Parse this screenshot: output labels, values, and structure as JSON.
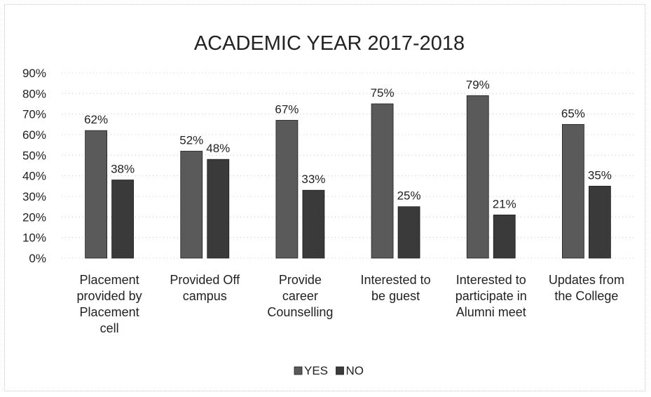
{
  "chart_data": {
    "type": "bar",
    "title": "ACADEMIC YEAR 2017-2018",
    "xlabel": "",
    "ylabel": "",
    "ylim": [
      0,
      90
    ],
    "ytick_values": [
      0,
      10,
      20,
      30,
      40,
      50,
      60,
      70,
      80,
      90
    ],
    "ytick_labels": [
      "0%",
      "10%",
      "20%",
      "30%",
      "40%",
      "50%",
      "60%",
      "70%",
      "80%",
      "90%"
    ],
    "value_suffix": "%",
    "categories": [
      [
        "Placement",
        "provided by",
        "Placement",
        "cell"
      ],
      [
        "Provided Off",
        "campus"
      ],
      [
        "Provide",
        "career",
        "Counselling"
      ],
      [
        "Interested to",
        "be guest"
      ],
      [
        "Interested to",
        "participate in",
        "Alumni meet"
      ],
      [
        "Updates from",
        "the College"
      ]
    ],
    "series": [
      {
        "name": "YES",
        "values": [
          62,
          52,
          67,
          75,
          79,
          65
        ],
        "color": "#5a5a5a"
      },
      {
        "name": "NO",
        "values": [
          38,
          48,
          33,
          25,
          21,
          35
        ],
        "color": "#3a3a3a"
      }
    ],
    "grid": true,
    "legend_position": "bottom-center"
  }
}
